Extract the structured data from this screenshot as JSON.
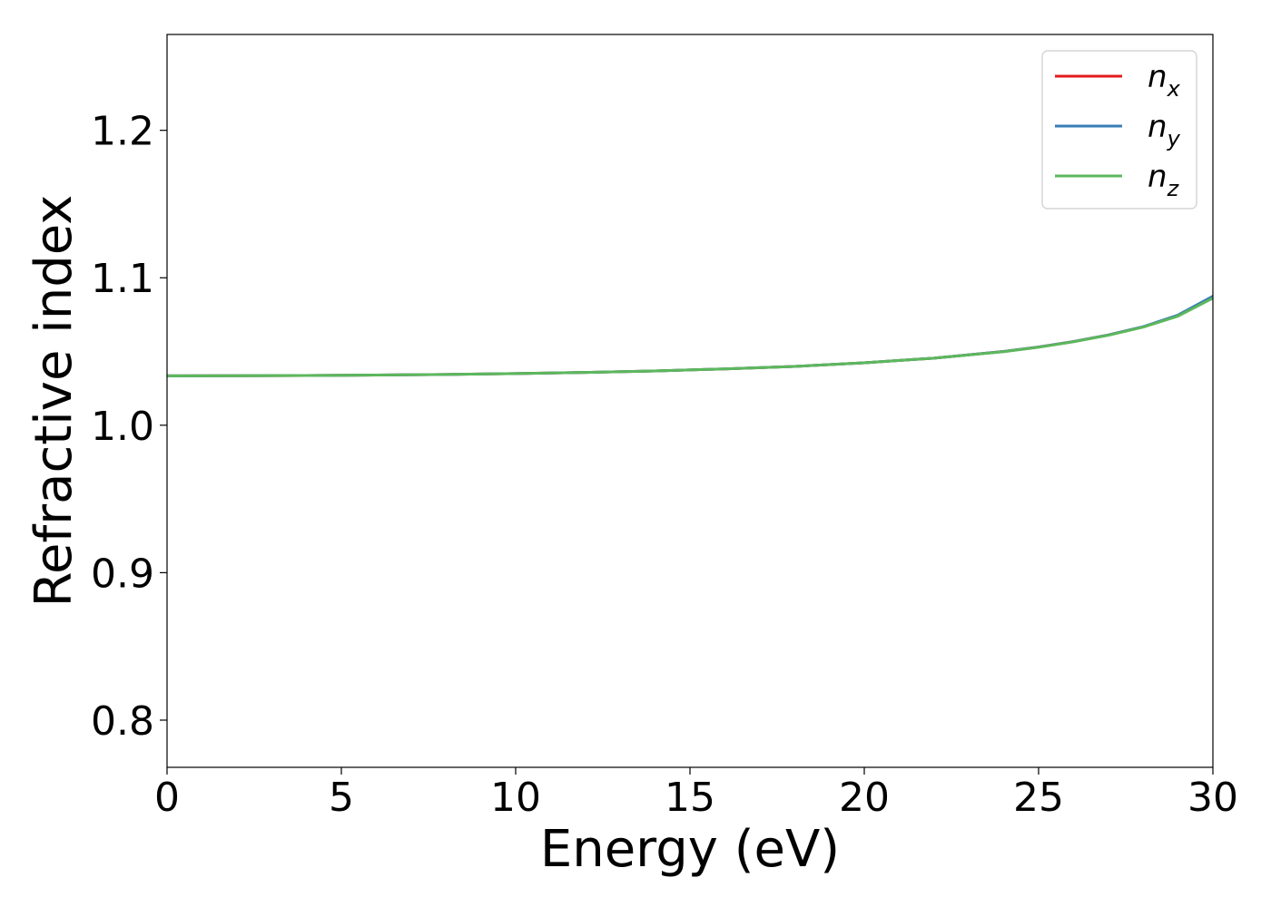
{
  "chart_data": {
    "type": "line",
    "xlabel": "Energy (eV)",
    "ylabel": "Refractive index",
    "xlim": [
      0,
      30
    ],
    "ylim": [
      0.768,
      1.265
    ],
    "xticks": [
      0,
      5,
      10,
      15,
      20,
      25,
      30
    ],
    "xtick_labels": [
      "0",
      "5",
      "10",
      "15",
      "20",
      "25",
      "30"
    ],
    "yticks": [
      0.8,
      0.9,
      1.0,
      1.1,
      1.2
    ],
    "ytick_labels": [
      "0.8",
      "0.9",
      "1.0",
      "1.1",
      "1.2"
    ],
    "grid": false,
    "legend_position": "top-right",
    "x": [
      0,
      2,
      4,
      6,
      8,
      10,
      12,
      14,
      16,
      18,
      20,
      22,
      24,
      25,
      26,
      27,
      28,
      29,
      30
    ],
    "series": [
      {
        "name": "n",
        "subscript": "x",
        "color": "#e41a1c",
        "values": [
          1.0335,
          1.0336,
          1.0337,
          1.034,
          1.0344,
          1.035,
          1.0358,
          1.0368,
          1.0382,
          1.0399,
          1.0423,
          1.0455,
          1.05,
          1.053,
          1.0567,
          1.0612,
          1.0667,
          1.0744,
          1.087
        ]
      },
      {
        "name": "n",
        "subscript": "y",
        "color": "#377eb8",
        "values": [
          1.0335,
          1.0336,
          1.0337,
          1.034,
          1.0344,
          1.035,
          1.0358,
          1.0368,
          1.0382,
          1.0399,
          1.0423,
          1.0455,
          1.05,
          1.053,
          1.0567,
          1.0612,
          1.0668,
          1.0747,
          1.0875
        ]
      },
      {
        "name": "n",
        "subscript": "z",
        "color": "#5cb85c",
        "values": [
          1.0335,
          1.0336,
          1.0337,
          1.034,
          1.0344,
          1.035,
          1.0358,
          1.0368,
          1.0382,
          1.0399,
          1.0423,
          1.0455,
          1.0499,
          1.0529,
          1.0566,
          1.061,
          1.0665,
          1.074,
          1.0862
        ]
      }
    ]
  }
}
